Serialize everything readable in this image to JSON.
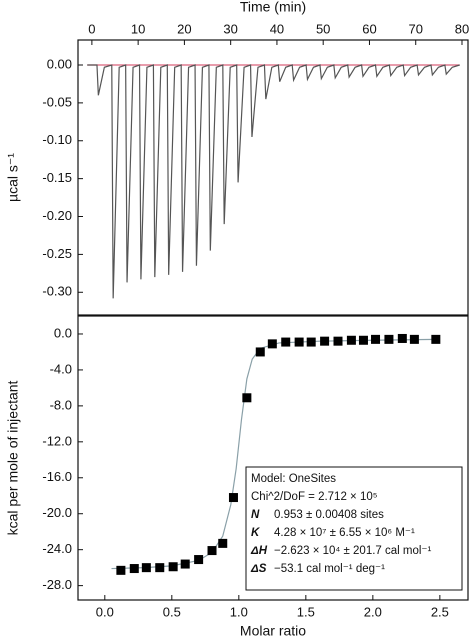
{
  "chart_data": [
    {
      "type": "line",
      "x_label": "Time (min)",
      "y_label": "µcal s⁻¹",
      "xlim": [
        -3,
        81.3
      ],
      "ylim": [
        -0.33,
        0.033
      ],
      "xticks": [
        0,
        10,
        20,
        30,
        40,
        50,
        60,
        70,
        80
      ],
      "yticks": [
        {
          "value": 0,
          "label": "0.00"
        },
        -0.05,
        {
          "value": -0.1,
          "label": "-0.10"
        },
        -0.15,
        {
          "value": -0.2,
          "label": "-0.20"
        },
        -0.25,
        {
          "value": -0.3,
          "label": "-0.30"
        }
      ],
      "series": [
        {
          "color": "#d9607a",
          "x": [
            -1,
            79.5
          ],
          "values": [
            0,
            0
          ]
        },
        {
          "color": "#555555",
          "x": [
            -1,
            1.1,
            1.4,
            2.7,
            4.3,
            4.6,
            5.9,
            7.3,
            7.6,
            8.9,
            10.3,
            10.6,
            11.9,
            13.3,
            13.6,
            14.9,
            16.3,
            16.6,
            17.9,
            19.3,
            19.6,
            20.9,
            22.3,
            22.6,
            23.9,
            25.3,
            25.6,
            26.9,
            28.3,
            28.6,
            29.9,
            31.3,
            31.6,
            32.9,
            34.3,
            34.6,
            35.9,
            37.3,
            37.6,
            38.9,
            40.3,
            40.6,
            41.9,
            43.3,
            43.6,
            44.9,
            46.3,
            46.6,
            47.9,
            49.3,
            49.6,
            50.9,
            52.3,
            52.6,
            53.9,
            55.3,
            55.6,
            56.9,
            58.3,
            58.6,
            59.9,
            61.3,
            61.6,
            62.9,
            64.3,
            64.6,
            65.9,
            67.3,
            67.6,
            68.9,
            70.3,
            70.6,
            71.9,
            73.3,
            73.6,
            74.9,
            76.3,
            76.6,
            77.9,
            79.5
          ],
          "values": [
            0,
            0,
            -0.04,
            -0.003,
            0,
            -0.308,
            -0.003,
            0,
            -0.287,
            -0.003,
            0,
            -0.283,
            -0.003,
            0,
            -0.28,
            -0.003,
            0,
            -0.277,
            -0.003,
            0,
            -0.273,
            -0.003,
            0,
            -0.265,
            -0.003,
            0,
            -0.245,
            -0.003,
            0,
            -0.21,
            -0.003,
            0,
            -0.155,
            -0.003,
            0,
            -0.095,
            -0.003,
            0,
            -0.045,
            -0.003,
            0,
            -0.022,
            -0.003,
            0,
            -0.02,
            -0.003,
            0,
            -0.019,
            -0.003,
            0,
            -0.018,
            -0.003,
            0,
            -0.017,
            -0.003,
            0,
            -0.016,
            -0.003,
            0,
            -0.015,
            -0.003,
            0,
            -0.015,
            -0.003,
            0,
            -0.014,
            -0.003,
            0,
            -0.014,
            -0.003,
            0,
            -0.013,
            -0.003,
            0,
            -0.013,
            -0.003,
            0,
            -0.012,
            -0.003,
            0
          ]
        }
      ]
    },
    {
      "type": "scatter",
      "x_label": "Molar ratio",
      "y_label": "kcal per mole of injectant",
      "xlim": [
        -0.2,
        2.71
      ],
      "ylim": [
        -29.6,
        2.0
      ],
      "xticks": [
        {
          "value": 0,
          "label": "0.0"
        },
        0.5,
        {
          "value": 1,
          "label": "1.0"
        },
        1.5,
        {
          "value": 2,
          "label": "2.0"
        },
        2.5
      ],
      "yticks": [
        {
          "value": 0,
          "label": "0.0"
        },
        {
          "value": -4,
          "label": "-4.0"
        },
        {
          "value": -8,
          "label": "-8.0"
        },
        {
          "value": -12,
          "label": "-12.0"
        },
        {
          "value": -16,
          "label": "-16.0"
        },
        {
          "value": -20,
          "label": "-20.0"
        },
        {
          "value": -24,
          "label": "-24.0"
        },
        {
          "value": -28,
          "label": "-28.0"
        }
      ],
      "series": [
        {
          "type": "line",
          "color": "#8aa0a8",
          "x": [
            0.05,
            0.3,
            0.5,
            0.7,
            0.8,
            0.88,
            0.94,
            0.98,
            1.02,
            1.06,
            1.1,
            1.16,
            1.3,
            1.6,
            2.0,
            2.47
          ],
          "values": [
            -26.1,
            -26.0,
            -25.8,
            -25.2,
            -24.3,
            -22.5,
            -19,
            -15,
            -9.5,
            -5,
            -2.8,
            -1.6,
            -1.0,
            -0.8,
            -0.7,
            -0.6
          ]
        },
        {
          "type": "scatter",
          "color": "#000000",
          "x": [
            0.12,
            0.22,
            0.31,
            0.41,
            0.51,
            0.6,
            0.7,
            0.8,
            0.88,
            0.96,
            1.06,
            1.16,
            1.25,
            1.35,
            1.45,
            1.54,
            1.64,
            1.74,
            1.84,
            1.93,
            2.02,
            2.12,
            2.22,
            2.31,
            2.47
          ],
          "values": [
            -26.3,
            -26.1,
            -26.0,
            -26.0,
            -25.9,
            -25.6,
            -25.1,
            -24.1,
            -23.3,
            -18.2,
            -7.1,
            -2.0,
            -1.1,
            -0.9,
            -0.9,
            -0.9,
            -0.8,
            -0.8,
            -0.7,
            -0.7,
            -0.6,
            -0.6,
            -0.5,
            -0.6,
            -0.6
          ]
        }
      ],
      "annotation": {
        "lines": [
          "Model: OneSites",
          "Chi^2/DoF = 2.712 × 10⁵"
        ],
        "params": [
          {
            "symbol": "N",
            "value": "0.953 ± 0.00408 sites"
          },
          {
            "symbol": "K",
            "value": "4.28 × 10⁷ ± 6.55 × 10⁶ M⁻¹"
          },
          {
            "symbol": "ΔH",
            "value": "−2.623 × 10⁴ ± 201.7 cal mol⁻¹"
          },
          {
            "symbol": "ΔS",
            "value": "−53.1 cal mol⁻¹ deg⁻¹"
          }
        ]
      }
    }
  ]
}
